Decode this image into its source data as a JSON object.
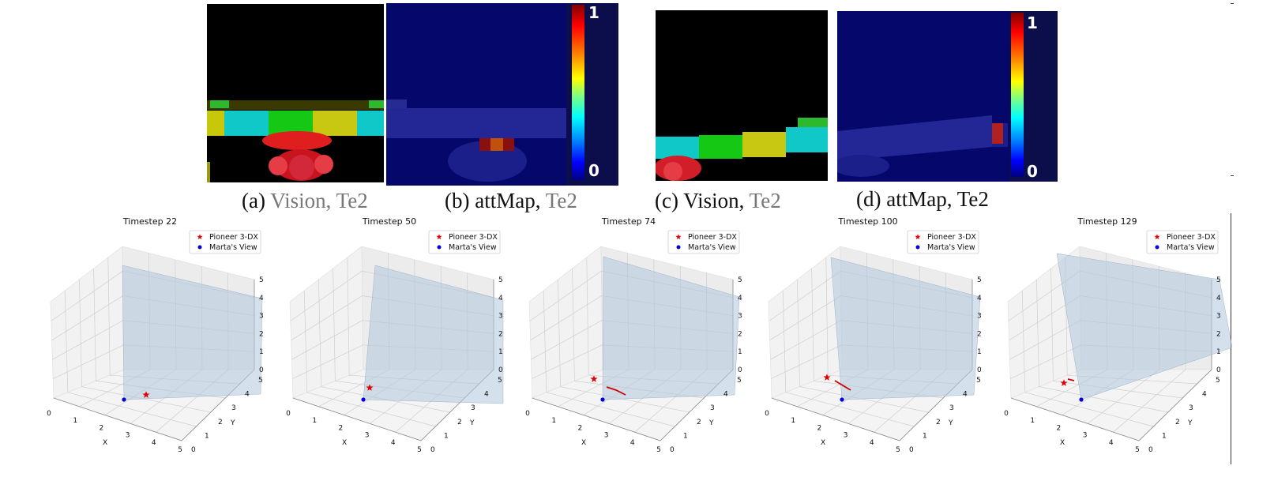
{
  "captions": {
    "a": {
      "label": "(a)",
      "text": "Vision,",
      "test": "Te2"
    },
    "b": {
      "label": "(b)",
      "text": "attMap,",
      "test": "Te2"
    },
    "c": {
      "label": "(c)",
      "text": "Vision,",
      "test": "Te2"
    },
    "d": {
      "label": "(d)",
      "text": "attMap,",
      "test": "Te2"
    }
  },
  "colorbar": {
    "max_label": "1",
    "min_label": "0",
    "colormap": "jet"
  },
  "legend": {
    "robot": "Pioneer 3-DX",
    "view": "Marta's View",
    "robot_color": "#e00000",
    "view_color": "#0000dd"
  },
  "chart_data": [
    {
      "type": "scatter",
      "title": "Timestep 22",
      "xlabel": "X",
      "ylabel": "Y",
      "xticks": [
        "0",
        "1",
        "2",
        "3",
        "4",
        "5"
      ],
      "yticks": [
        "0",
        "1",
        "2",
        "3",
        "4",
        "5"
      ],
      "zticks": [
        "0",
        "1",
        "2",
        "3",
        "4",
        "5"
      ],
      "xlim": [
        0,
        5
      ],
      "ylim": [
        0,
        5
      ],
      "zlim": [
        0,
        5
      ]
    },
    {
      "type": "scatter",
      "title": "Timestep 50",
      "xlabel": "X",
      "ylabel": "Y",
      "xticks": [
        "0",
        "1",
        "2",
        "3",
        "4",
        "5"
      ],
      "yticks": [
        "0",
        "1",
        "2",
        "3",
        "4",
        "5"
      ],
      "zticks": [
        "0",
        "1",
        "2",
        "3",
        "4",
        "5"
      ],
      "xlim": [
        0,
        5
      ],
      "ylim": [
        0,
        5
      ],
      "zlim": [
        0,
        5
      ]
    },
    {
      "type": "scatter",
      "title": "Timestep 74",
      "xlabel": "X",
      "ylabel": "Y",
      "xticks": [
        "0",
        "1",
        "2",
        "3",
        "4",
        "5"
      ],
      "yticks": [
        "0",
        "1",
        "2",
        "3",
        "4",
        "5"
      ],
      "zticks": [
        "0",
        "1",
        "2",
        "3",
        "4",
        "5"
      ],
      "xlim": [
        0,
        5
      ],
      "ylim": [
        0,
        5
      ],
      "zlim": [
        0,
        5
      ]
    },
    {
      "type": "scatter",
      "title": "Timestep 100",
      "xlabel": "X",
      "ylabel": "Y",
      "xticks": [
        "0",
        "1",
        "2",
        "3",
        "4",
        "5"
      ],
      "yticks": [
        "0",
        "1",
        "2",
        "3",
        "4",
        "5"
      ],
      "zticks": [
        "0",
        "1",
        "2",
        "3",
        "4",
        "5"
      ],
      "xlim": [
        0,
        5
      ],
      "ylim": [
        0,
        5
      ],
      "zlim": [
        0,
        5
      ]
    },
    {
      "type": "scatter",
      "title": "Timestep 129",
      "xlabel": "X",
      "ylabel": "Y",
      "xticks": [
        "0",
        "1",
        "2",
        "3",
        "4",
        "5"
      ],
      "yticks": [
        "0",
        "1",
        "2",
        "3",
        "4",
        "5"
      ],
      "zticks": [
        "0",
        "1",
        "2",
        "3",
        "4",
        "5"
      ],
      "xlim": [
        0,
        5
      ],
      "ylim": [
        0,
        5
      ],
      "zlim": [
        0,
        5
      ]
    }
  ]
}
